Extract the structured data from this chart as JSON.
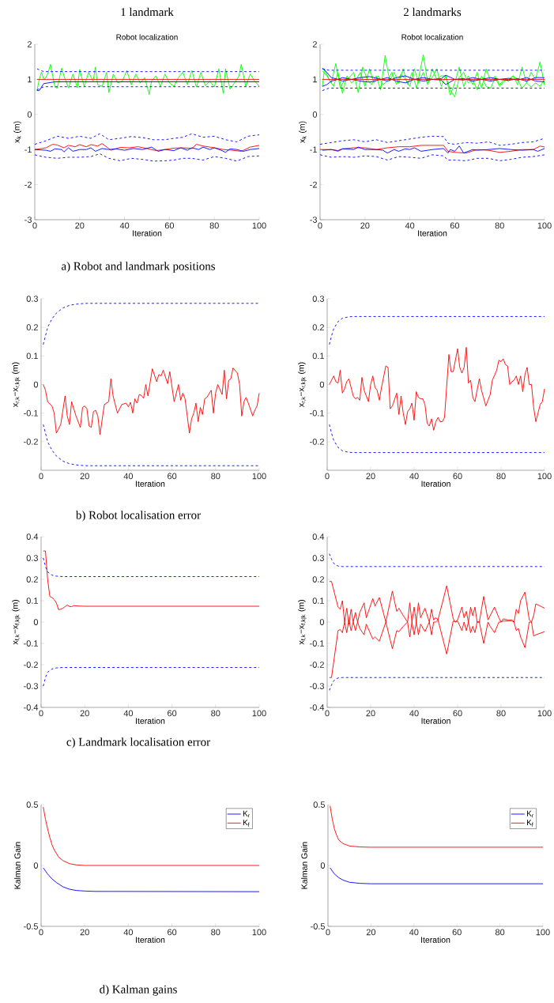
{
  "chart_data": [
    {
      "type": "line",
      "title": "Robot localization",
      "xlabel": "Iteration",
      "ylabel": "x$_{k}$ (m)",
      "xlim": [
        0,
        100
      ],
      "ylim": [
        -3,
        2
      ],
      "xticks": [
        0,
        20,
        40,
        60,
        80,
        100
      ],
      "yticks": [
        -3,
        -2,
        -1,
        0,
        1,
        2
      ],
      "annotations": [
        "1 landmark",
        "a) Robot and landmark positions"
      ],
      "series": [
        {
          "color": "#00ff00",
          "x": [
            1,
            2,
            3,
            4,
            5,
            6,
            7,
            8,
            9,
            10,
            12,
            13,
            15,
            17,
            19,
            20,
            22,
            24,
            26,
            27,
            28,
            30,
            32,
            33,
            35,
            37,
            39,
            41,
            43,
            45,
            47,
            49,
            51,
            52,
            54,
            56,
            58,
            60,
            62,
            64,
            66,
            68,
            70,
            72,
            74,
            76,
            78,
            80,
            82,
            84,
            85,
            87,
            89,
            91,
            92,
            94,
            96,
            98,
            100
          ],
          "values": [
            0.68,
            1.0,
            1.2,
            1.0,
            1.05,
            1.2,
            1.43,
            1.1,
            0.78,
            0.75,
            1.32,
            1.1,
            0.76,
            1.15,
            0.76,
            1.28,
            0.8,
            1.2,
            0.95,
            1.35,
            0.85,
            0.8,
            1.2,
            0.62,
            1.15,
            0.9,
            0.95,
            1.25,
            0.85,
            1.15,
            0.9,
            1.05,
            0.57,
            0.95,
            1.1,
            0.8,
            1.15,
            0.9,
            0.8,
            1.05,
            1.2,
            0.85,
            1.25,
            0.78,
            1.2,
            0.82,
            0.95,
            0.78,
            1.3,
            0.6,
            1.3,
            0.72,
            0.9,
            1.1,
            1.43,
            0.8,
            1.15,
            0.95,
            0.8
          ]
        },
        {
          "color": "#0000ff",
          "line_style": "dashed",
          "x": [
            1,
            4,
            100
          ],
          "values": [
            1.3,
            1.22,
            1.22
          ]
        },
        {
          "color": "#0000ff",
          "line_style": "dashed",
          "x": [
            1,
            4,
            100
          ],
          "values": [
            0.7,
            0.79,
            0.79
          ]
        },
        {
          "color": "#0000ff",
          "x": [
            1,
            2,
            4,
            9,
            100
          ],
          "values": [
            0.68,
            0.68,
            0.88,
            0.93,
            0.93
          ]
        },
        {
          "color": "#ff0000",
          "x": [
            1,
            100
          ],
          "values": [
            1,
            1
          ]
        },
        {
          "color": "#0000ff",
          "line_style": "dashed",
          "x": [
            0,
            5,
            10,
            15,
            20,
            25,
            29,
            33,
            38,
            43,
            48,
            53,
            58,
            62,
            66,
            70,
            75,
            80,
            85,
            90,
            95,
            100
          ],
          "values": [
            -0.85,
            -0.75,
            -0.62,
            -0.68,
            -0.62,
            -0.68,
            -0.55,
            -0.72,
            -0.68,
            -0.63,
            -0.66,
            -0.72,
            -0.72,
            -0.68,
            -0.65,
            -0.55,
            -0.65,
            -0.62,
            -0.72,
            -0.78,
            -0.62,
            -0.58
          ]
        },
        {
          "color": "#0000ff",
          "line_style": "dashed",
          "x": [
            0,
            5,
            10,
            15,
            20,
            25,
            29,
            33,
            38,
            43,
            48,
            53,
            58,
            62,
            66,
            70,
            75,
            80,
            85,
            90,
            95,
            100
          ],
          "values": [
            -1.15,
            -1.22,
            -1.25,
            -1.22,
            -1.22,
            -1.2,
            -1.12,
            -1.25,
            -1.32,
            -1.25,
            -1.28,
            -1.33,
            -1.32,
            -1.3,
            -1.25,
            -1.25,
            -1.3,
            -1.2,
            -1.25,
            -1.33,
            -1.2,
            -1.18
          ]
        },
        {
          "color": "#ff0000",
          "x": [
            0,
            5,
            8,
            10,
            13,
            15,
            18,
            20,
            23,
            25,
            28,
            30,
            34,
            38,
            42,
            46,
            50,
            54,
            58,
            62,
            66,
            70,
            72,
            75,
            78,
            80,
            84,
            88,
            92,
            96,
            100
          ],
          "values": [
            -1.0,
            -0.95,
            -0.85,
            -0.87,
            -0.95,
            -0.88,
            -0.92,
            -0.86,
            -0.92,
            -0.86,
            -0.9,
            -0.83,
            -1.02,
            -0.94,
            -0.95,
            -0.92,
            -0.97,
            -1.03,
            -1.0,
            -0.96,
            -0.95,
            -0.97,
            -0.85,
            -0.9,
            -0.93,
            -0.95,
            -1.0,
            -1.02,
            -1.05,
            -0.93,
            -0.88
          ]
        },
        {
          "color": "#0000ff",
          "x": [
            0,
            5,
            7,
            9,
            12,
            13,
            15,
            17,
            20,
            23,
            25,
            27,
            30,
            33,
            36,
            40,
            44,
            48,
            52,
            55,
            58,
            62,
            65,
            68,
            70,
            73,
            75,
            78,
            80,
            83,
            85,
            87,
            90,
            93,
            96,
            100
          ],
          "values": [
            -1.0,
            -1.02,
            -1.05,
            -0.98,
            -1.0,
            -1.07,
            -0.95,
            -1.05,
            -1.0,
            -1.0,
            -0.95,
            -1.05,
            -0.97,
            -1.0,
            -0.98,
            -1.02,
            -0.97,
            -1.0,
            -0.93,
            -1.05,
            -1.0,
            -1.03,
            -0.95,
            -1.02,
            -0.95,
            -1.0,
            -0.93,
            -1.0,
            -0.95,
            -1.02,
            -1.08,
            -0.98,
            -1.0,
            -1.05,
            -1.0,
            -0.97
          ]
        }
      ]
    },
    {
      "type": "line",
      "title": "Robot localization",
      "xlabel": "Iteration",
      "ylabel": "x$_{k}$ (m)",
      "xlim": [
        0,
        100
      ],
      "ylim": [
        -3,
        2
      ],
      "xticks": [
        0,
        20,
        40,
        60,
        80,
        100
      ],
      "yticks": [
        -3,
        -2,
        -1,
        0,
        1,
        2
      ],
      "annotations": [
        "2 landmarks"
      ],
      "series": [
        {
          "color": "#00ff00",
          "x": [
            1,
            3,
            5,
            7,
            9,
            11,
            13,
            15,
            17,
            19,
            21,
            23,
            25,
            27,
            29,
            31,
            33,
            35,
            37,
            39,
            41,
            43,
            46,
            48,
            50,
            52,
            54,
            56,
            58,
            60,
            62,
            64,
            66,
            68,
            70,
            72,
            74,
            76,
            78,
            80,
            82,
            84,
            86,
            88,
            90,
            92,
            94,
            96,
            98,
            100
          ],
          "values": [
            1.25,
            1.1,
            0.9,
            1.45,
            0.75,
            1.0,
            1.05,
            1.2,
            0.62,
            1.35,
            1.0,
            0.85,
            1.1,
            0.7,
            1.68,
            0.95,
            1.2,
            0.9,
            1.3,
            0.85,
            1.2,
            0.75,
            1.7,
            0.9,
            1.05,
            1.3,
            0.8,
            1.1,
            0.55,
            0.9,
            1.35,
            0.8,
            1.1,
            0.85,
            1.2,
            0.75,
            1.3,
            0.95,
            1.1,
            0.85,
            1.0,
            0.95,
            1.1,
            0.85,
            1.35,
            0.9,
            1.2,
            1.0,
            1.5,
            0.83
          ]
        },
        {
          "color": "#00ff00",
          "x": [
            1,
            2,
            4,
            6,
            8,
            10,
            12,
            14,
            16,
            18,
            20,
            22,
            24,
            26,
            28,
            30,
            32,
            34,
            36,
            38,
            40,
            42,
            44,
            46,
            48,
            50,
            52,
            54,
            56,
            58,
            60,
            62,
            64,
            66,
            68,
            70,
            72,
            74,
            76,
            78,
            80,
            82,
            84,
            86,
            88,
            90,
            92,
            94,
            96,
            98,
            100
          ],
          "values": [
            0.8,
            1.3,
            1.0,
            0.8,
            1.2,
            0.6,
            1.1,
            0.9,
            1.0,
            1.2,
            0.8,
            1.3,
            0.9,
            1.1,
            0.85,
            0.95,
            1.2,
            0.85,
            1.15,
            1.0,
            0.8,
            1.3,
            0.9,
            1.2,
            0.85,
            1.3,
            1.0,
            1.1,
            1.1,
            0.7,
            0.5,
            1.05,
            1.2,
            0.9,
            1.0,
            0.7,
            1.1,
            0.8,
            0.75,
            1.05,
            0.8,
            0.95,
            1.0,
            1.1,
            1.0,
            0.75,
            0.9,
            0.78,
            0.9,
            0.8,
            1.0
          ]
        },
        {
          "color": "#0000ff",
          "line_style": "dashed",
          "x": [
            1,
            4,
            100
          ],
          "values": [
            1.3,
            1.26,
            1.26
          ]
        },
        {
          "color": "#0000ff",
          "line_style": "dashed",
          "x": [
            1,
            4,
            100
          ],
          "values": [
            0.68,
            0.75,
            0.75
          ]
        },
        {
          "color": "#0000ff",
          "x": [
            1,
            3,
            5,
            8,
            10,
            14,
            18,
            22,
            26,
            30,
            34,
            38,
            42,
            46,
            50,
            54,
            56,
            60,
            64,
            68,
            72,
            76,
            80,
            84,
            88,
            92,
            96,
            100
          ],
          "values": [
            1.32,
            1.2,
            1.05,
            1.0,
            0.95,
            1.0,
            1.05,
            1.08,
            1.02,
            0.95,
            1.05,
            1.1,
            1.0,
            1.05,
            1.0,
            1.02,
            1.12,
            1.0,
            0.98,
            1.05,
            1.0,
            0.95,
            1.0,
            0.97,
            1.02,
            0.95,
            1.05,
            1.05
          ]
        },
        {
          "color": "#0000ff",
          "x": [
            1,
            3,
            5,
            8,
            10,
            14,
            18,
            22,
            26,
            30,
            34,
            38,
            42,
            46,
            50,
            54,
            56,
            60,
            64,
            68,
            72,
            76,
            80,
            84,
            88,
            92,
            96,
            100
          ],
          "values": [
            0.8,
            0.85,
            0.95,
            1.0,
            1.05,
            1.0,
            0.95,
            0.92,
            0.98,
            1.05,
            0.95,
            0.9,
            1.0,
            0.95,
            1.0,
            0.98,
            0.85,
            1.0,
            1.02,
            0.95,
            1.0,
            1.05,
            1.0,
            1.03,
            0.98,
            1.05,
            0.95,
            0.93
          ]
        },
        {
          "color": "#ff0000",
          "x": [
            1,
            100
          ],
          "values": [
            1,
            1
          ]
        },
        {
          "color": "#0000ff",
          "line_style": "dashed",
          "x": [
            0,
            5,
            10,
            15,
            20,
            25,
            30,
            35,
            40,
            45,
            50,
            55,
            57,
            60,
            65,
            70,
            75,
            80,
            85,
            90,
            95,
            100
          ],
          "values": [
            -0.85,
            -0.8,
            -0.75,
            -0.72,
            -0.78,
            -0.72,
            -0.8,
            -0.75,
            -0.7,
            -0.65,
            -0.62,
            -0.63,
            -0.82,
            -0.85,
            -0.8,
            -0.82,
            -0.78,
            -0.88,
            -0.85,
            -0.8,
            -0.78,
            -0.68
          ]
        },
        {
          "color": "#0000ff",
          "line_style": "dashed",
          "x": [
            0,
            5,
            10,
            15,
            20,
            25,
            30,
            35,
            40,
            45,
            50,
            55,
            57,
            60,
            65,
            70,
            75,
            80,
            85,
            90,
            95,
            100
          ],
          "values": [
            -1.15,
            -1.22,
            -1.2,
            -1.22,
            -1.18,
            -1.2,
            -1.3,
            -1.2,
            -1.22,
            -1.25,
            -1.15,
            -1.18,
            -1.3,
            -1.3,
            -1.32,
            -1.25,
            -1.25,
            -1.32,
            -1.28,
            -1.22,
            -1.2,
            -1.15
          ]
        },
        {
          "color": "#ff0000",
          "x": [
            0,
            5,
            8,
            10,
            15,
            20,
            25,
            30,
            35,
            40,
            45,
            50,
            55,
            57,
            60,
            65,
            70,
            75,
            80,
            85,
            90,
            95,
            98,
            100
          ],
          "values": [
            -1.0,
            -1.0,
            -1.05,
            -0.98,
            -0.95,
            -0.95,
            -1.0,
            -0.95,
            -0.92,
            -0.92,
            -0.88,
            -0.88,
            -0.88,
            -1.05,
            -1.08,
            -1.1,
            -1.0,
            -1.02,
            -1.08,
            -1.05,
            -1.0,
            -1.0,
            -0.9,
            -0.93
          ]
        },
        {
          "color": "#0000ff",
          "x": [
            1,
            5,
            8,
            10,
            15,
            17,
            20,
            25,
            28,
            30,
            33,
            35,
            38,
            40,
            42,
            45,
            50,
            55,
            57,
            58,
            60,
            62,
            64,
            66,
            68,
            70,
            75,
            80,
            85,
            90,
            95,
            97,
            100
          ],
          "values": [
            -1.02,
            -1.0,
            -1.03,
            -0.98,
            -1.0,
            -0.93,
            -1.0,
            -1.0,
            -1.02,
            -1.1,
            -1.0,
            -1.05,
            -0.98,
            -1.0,
            -0.95,
            -1.05,
            -1.0,
            -0.97,
            -1.1,
            -1.0,
            -1.05,
            -0.9,
            -1.1,
            -1.05,
            -1.0,
            -1.02,
            -1.0,
            -0.97,
            -1.0,
            -1.02,
            -1.0,
            -1.05,
            -0.97
          ]
        }
      ]
    },
    {
      "type": "line",
      "xlabel": "Iteration",
      "ylabel": "x$_{r,k}$−x$_{r,k|k}$ (m)",
      "xlim": [
        0,
        100
      ],
      "ylim": [
        -0.3,
        0.3
      ],
      "xticks": [
        0,
        20,
        40,
        60,
        80,
        100
      ],
      "yticks": [
        -0.2,
        -0.1,
        0,
        0.1,
        0.2,
        0.3
      ],
      "annotations": [
        "b) Robot localisation error"
      ],
      "series": [
        {
          "color": "#0000ff",
          "line_style": "dashed",
          "x": [
            1,
            2,
            3,
            5,
            7,
            10,
            13,
            16,
            20,
            100
          ],
          "values": [
            0.14,
            0.17,
            0.2,
            0.23,
            0.25,
            0.268,
            0.277,
            0.281,
            0.284,
            0.284
          ]
        },
        {
          "color": "#0000ff",
          "line_style": "dashed",
          "x": [
            1,
            2,
            3,
            5,
            7,
            10,
            13,
            16,
            20,
            100
          ],
          "values": [
            -0.14,
            -0.17,
            -0.2,
            -0.23,
            -0.25,
            -0.268,
            -0.277,
            -0.281,
            -0.284,
            -0.284
          ]
        },
        {
          "color": "#ff0000",
          "x": [
            1,
            2,
            3,
            5,
            6,
            7,
            9,
            11,
            12,
            13,
            14,
            16,
            18,
            19,
            20,
            21,
            22,
            23,
            24,
            25,
            26,
            27,
            29,
            31,
            32,
            33,
            35,
            37,
            39,
            40,
            41,
            42,
            43,
            44,
            45,
            46,
            47,
            48,
            49,
            51,
            53,
            54,
            55,
            56,
            58,
            59,
            61,
            63,
            64,
            65,
            66,
            68,
            69,
            70,
            71,
            72,
            73,
            74,
            75,
            76,
            78,
            79,
            80,
            81,
            83,
            84,
            85,
            86,
            87,
            88,
            90,
            91,
            92,
            93,
            94,
            95,
            97,
            98,
            99,
            100
          ],
          "values": [
            0.0,
            -0.02,
            -0.06,
            -0.075,
            -0.1,
            -0.17,
            -0.14,
            -0.04,
            -0.11,
            -0.14,
            -0.06,
            -0.11,
            -0.15,
            -0.08,
            -0.075,
            -0.085,
            -0.145,
            -0.15,
            -0.095,
            -0.09,
            -0.11,
            -0.175,
            -0.07,
            -0.06,
            0.02,
            -0.04,
            -0.1,
            -0.07,
            -0.065,
            -0.078,
            -0.062,
            -0.1,
            -0.05,
            -0.065,
            -0.035,
            -0.038,
            -0.048,
            0.0,
            -0.04,
            0.055,
            0.01,
            0.035,
            0.03,
            0.05,
            0.003,
            0.045,
            -0.06,
            0.0,
            -0.055,
            -0.03,
            -0.05,
            -0.17,
            -0.12,
            -0.1,
            -0.065,
            -0.13,
            -0.08,
            -0.105,
            -0.05,
            -0.045,
            -0.02,
            -0.1,
            -0.03,
            0.0,
            -0.035,
            0.05,
            -0.05,
            0.015,
            0.02,
            0.058,
            0.04,
            0.0,
            -0.11,
            -0.06,
            -0.045,
            -0.065,
            -0.11,
            -0.09,
            -0.075,
            -0.03
          ]
        }
      ]
    },
    {
      "type": "line",
      "xlabel": "Iteration",
      "ylabel": "x$_{r,k}$−x$_{r,k|k}$ (m)",
      "xlim": [
        0,
        100
      ],
      "ylim": [
        -0.3,
        0.3
      ],
      "xticks": [
        0,
        20,
        40,
        60,
        80,
        100
      ],
      "yticks": [
        -0.2,
        -0.1,
        0,
        0.1,
        0.2,
        0.3
      ],
      "series": [
        {
          "color": "#0000ff",
          "line_style": "dashed",
          "x": [
            1,
            2,
            3,
            5,
            7,
            10,
            12,
            100
          ],
          "values": [
            0.14,
            0.17,
            0.195,
            0.22,
            0.232,
            0.237,
            0.238,
            0.238
          ]
        },
        {
          "color": "#0000ff",
          "line_style": "dashed",
          "x": [
            1,
            2,
            3,
            5,
            7,
            10,
            12,
            100
          ],
          "values": [
            -0.14,
            -0.17,
            -0.195,
            -0.22,
            -0.232,
            -0.237,
            -0.238,
            -0.238
          ]
        },
        {
          "color": "#ff0000",
          "x": [
            1,
            3,
            4,
            5,
            6,
            7,
            8,
            9,
            10,
            11,
            12,
            13,
            14,
            15,
            16,
            17,
            19,
            20,
            21,
            22,
            23,
            24,
            25,
            27,
            28,
            29,
            30,
            32,
            33,
            34,
            35,
            36,
            37,
            38,
            39,
            40,
            41,
            42,
            43,
            44,
            45,
            46,
            47,
            48,
            49,
            50,
            51,
            52,
            53,
            54,
            56,
            57,
            58,
            60,
            61,
            62,
            63,
            64,
            65,
            66,
            67,
            68,
            70,
            71,
            73,
            74,
            75,
            76,
            78,
            79,
            80,
            81,
            82,
            83,
            84,
            85,
            86,
            87,
            88,
            89,
            90,
            91,
            92,
            93,
            94,
            95,
            96,
            97,
            98,
            99,
            100
          ],
          "values": [
            0.0,
            0.03,
            0.01,
            0.005,
            0.05,
            -0.03,
            -0.015,
            0.01,
            0.02,
            -0.01,
            -0.04,
            -0.05,
            -0.045,
            -0.055,
            0.025,
            -0.02,
            -0.06,
            0.0,
            0.03,
            -0.01,
            -0.02,
            -0.055,
            -0.01,
            0.065,
            0.06,
            -0.085,
            -0.075,
            -0.03,
            -0.105,
            -0.04,
            -0.1,
            -0.14,
            -0.095,
            -0.085,
            -0.065,
            -0.125,
            -0.025,
            -0.045,
            -0.05,
            -0.05,
            -0.07,
            -0.135,
            -0.145,
            -0.12,
            -0.16,
            -0.13,
            -0.115,
            -0.13,
            -0.13,
            -0.115,
            0.105,
            0.045,
            0.045,
            0.125,
            0.06,
            0.04,
            0.06,
            0.13,
            0.005,
            0.015,
            -0.045,
            -0.06,
            0.02,
            -0.02,
            -0.075,
            -0.055,
            -0.035,
            0.015,
            0.05,
            0.085,
            0.08,
            0.09,
            0.07,
            0.065,
            0.0,
            0.01,
            0.015,
            0.03,
            0.0,
            0.03,
            -0.025,
            0.035,
            0.06,
            0.0,
            0.0,
            -0.08,
            -0.13,
            -0.1,
            -0.07,
            -0.06,
            -0.015
          ]
        }
      ]
    },
    {
      "type": "line",
      "xlabel": "Iteration",
      "ylabel": "x$_{f,k}$−x$_{f,k|k}$ (m)",
      "xlim": [
        0,
        100
      ],
      "ylim": [
        -0.4,
        0.4
      ],
      "xticks": [
        0,
        20,
        40,
        60,
        80,
        100
      ],
      "yticks": [
        -0.4,
        -0.3,
        -0.2,
        -0.1,
        0,
        0.1,
        0.2,
        0.3,
        0.4
      ],
      "annotations": [
        "c) Landmark localisation error"
      ],
      "series": [
        {
          "color": "#0000ff",
          "line_style": "dashed",
          "x": [
            1,
            2,
            3,
            5,
            7,
            10,
            100
          ],
          "values": [
            0.3,
            0.26,
            0.235,
            0.22,
            0.215,
            0.213,
            0.213
          ]
        },
        {
          "color": "#0000ff",
          "line_style": "dashed",
          "x": [
            1,
            2,
            3,
            5,
            7,
            10,
            100
          ],
          "values": [
            -0.3,
            -0.26,
            -0.235,
            -0.22,
            -0.215,
            -0.213,
            -0.213
          ]
        },
        {
          "color": "#ff0000",
          "x": [
            1,
            2,
            3,
            4,
            5,
            6,
            7,
            8,
            9,
            10,
            11,
            12,
            13,
            14,
            15,
            17,
            20,
            100
          ],
          "values": [
            0.333,
            0.333,
            0.2,
            0.12,
            0.115,
            0.105,
            0.09,
            0.058,
            0.06,
            0.065,
            0.072,
            0.08,
            0.073,
            0.072,
            0.077,
            0.075,
            0.074,
            0.074
          ]
        }
      ]
    },
    {
      "type": "line",
      "xlabel": "Iteration",
      "ylabel": "x$_{f,k}$−x$_{f,k|k}$ (m)",
      "xlim": [
        0,
        100
      ],
      "ylim": [
        -0.4,
        0.4
      ],
      "xticks": [
        0,
        20,
        40,
        60,
        80,
        100
      ],
      "yticks": [
        -0.4,
        -0.3,
        -0.2,
        -0.1,
        0,
        0.1,
        0.2,
        0.3,
        0.4
      ],
      "series": [
        {
          "color": "#0000ff",
          "line_style": "dashed",
          "x": [
            1,
            2,
            3,
            5,
            7,
            100
          ],
          "values": [
            0.32,
            0.295,
            0.275,
            0.262,
            0.26,
            0.26
          ]
        },
        {
          "color": "#0000ff",
          "line_style": "dashed",
          "x": [
            1,
            2,
            3,
            5,
            7,
            100
          ],
          "values": [
            -0.32,
            -0.295,
            -0.275,
            -0.262,
            -0.26,
            -0.26
          ]
        },
        {
          "color": "#ff0000",
          "x": [
            1,
            2,
            5,
            6,
            7,
            8,
            9,
            10,
            11,
            12,
            13,
            14,
            15,
            17,
            18,
            21,
            22,
            24,
            27,
            30,
            32,
            33,
            35,
            37,
            38,
            39,
            40,
            41,
            42,
            43,
            45,
            47,
            48,
            49,
            50,
            51,
            55,
            58,
            59,
            60,
            62,
            63,
            64,
            65,
            66,
            67,
            68,
            69,
            70,
            72,
            74,
            75,
            77,
            79,
            80,
            81,
            83,
            85,
            86,
            87,
            88,
            89,
            91,
            93,
            94,
            95,
            96,
            100
          ],
          "values": [
            0.19,
            0.19,
            0.07,
            0.06,
            0.1,
            0.0,
            0.065,
            -0.01,
            0.06,
            0.0,
            0.045,
            0.0,
            0.045,
            0.09,
            0.02,
            0.11,
            0.075,
            0.115,
            0.0,
            0.145,
            0.05,
            0.065,
            0.03,
            0.0,
            0.09,
            0.0,
            0.07,
            0.0,
            0.09,
            0.02,
            0.065,
            0.0,
            0.06,
            0.01,
            0.02,
            0.01,
            0.17,
            0.015,
            0.0,
            0.01,
            0.07,
            0.02,
            0.05,
            0.0,
            0.07,
            0.03,
            0.07,
            0.0,
            0.0,
            0.12,
            0.01,
            0.03,
            0.07,
            0.02,
            0.0,
            0.015,
            0.01,
            0.01,
            0.0,
            0.06,
            0.04,
            0.1,
            0.14,
            0.01,
            0.0,
            0.03,
            0.085,
            0.065
          ]
        },
        {
          "color": "#ff0000",
          "x": [
            1,
            2,
            5,
            6,
            7,
            8,
            9,
            10,
            11,
            12,
            13,
            14,
            15,
            17,
            18,
            21,
            22,
            24,
            27,
            30,
            32,
            33,
            35,
            37,
            38,
            39,
            40,
            41,
            42,
            43,
            45,
            47,
            48,
            49,
            50,
            51,
            55,
            58,
            59,
            60,
            62,
            63,
            64,
            65,
            66,
            67,
            68,
            69,
            70,
            72,
            74,
            75,
            77,
            79,
            80,
            81,
            83,
            85,
            86,
            87,
            88,
            89,
            91,
            93,
            94,
            95,
            96,
            100
          ],
          "values": [
            -0.26,
            -0.26,
            -0.04,
            -0.035,
            -0.05,
            0.0,
            -0.05,
            0.01,
            -0.04,
            0.0,
            -0.04,
            0.0,
            -0.03,
            -0.06,
            -0.01,
            -0.08,
            -0.07,
            -0.09,
            0.0,
            -0.125,
            -0.04,
            -0.045,
            -0.02,
            0.0,
            -0.07,
            0.0,
            -0.06,
            0.0,
            -0.06,
            -0.01,
            -0.045,
            0.0,
            -0.06,
            0.0,
            0.0,
            0.01,
            -0.15,
            0.005,
            0.0,
            0.005,
            -0.04,
            0.0,
            -0.04,
            0.0,
            -0.05,
            -0.02,
            -0.05,
            0.0,
            0.0,
            -0.1,
            0.0,
            -0.02,
            -0.05,
            0.0,
            0.0,
            0.005,
            0.005,
            0.005,
            0.0,
            -0.04,
            -0.03,
            -0.07,
            -0.12,
            0.0,
            0.0,
            -0.065,
            -0.06,
            -0.045
          ]
        }
      ]
    },
    {
      "type": "line",
      "xlabel": "Iteration",
      "ylabel": "Kalman Gain",
      "xlim": [
        0,
        100
      ],
      "ylim": [
        -0.5,
        0.5
      ],
      "xticks": [
        0,
        20,
        40,
        60,
        80,
        100
      ],
      "yticks": [
        -0.5,
        0,
        0.5
      ],
      "legend": "top right",
      "annotations": [
        "d) Kalman gains"
      ],
      "series": [
        {
          "name": "K$_{r}$",
          "color": "#0000ff",
          "x": [
            1,
            3,
            5,
            7,
            10,
            13,
            16,
            20,
            25,
            100
          ],
          "values": [
            -0.02,
            -0.07,
            -0.11,
            -0.14,
            -0.175,
            -0.195,
            -0.205,
            -0.21,
            -0.213,
            -0.215
          ]
        },
        {
          "name": "K$_{f}$",
          "color": "#ff0000",
          "x": [
            1,
            2,
            3,
            4,
            5,
            6,
            8,
            10,
            13,
            16,
            20,
            100
          ],
          "values": [
            0.48,
            0.38,
            0.3,
            0.23,
            0.17,
            0.13,
            0.07,
            0.04,
            0.015,
            0.005,
            0.0,
            0.0
          ]
        }
      ]
    },
    {
      "type": "line",
      "xlabel": "Iteration",
      "ylabel": "Kalman Gain",
      "xlim": [
        0,
        100
      ],
      "ylim": [
        -0.5,
        0.5
      ],
      "xticks": [
        0,
        20,
        40,
        60,
        80,
        100
      ],
      "yticks": [
        -0.5,
        0,
        0.5
      ],
      "legend": "top right",
      "series": [
        {
          "name": "K$_{r}$",
          "color": "#0000ff",
          "x": [
            1,
            3,
            5,
            7,
            10,
            15,
            20,
            100
          ],
          "values": [
            -0.02,
            -0.07,
            -0.1,
            -0.12,
            -0.138,
            -0.147,
            -0.15,
            -0.15
          ]
        },
        {
          "name": "K$_{f}$",
          "color": "#ff0000",
          "x": [
            1,
            2,
            3,
            4,
            5,
            7,
            10,
            15,
            20,
            100
          ],
          "values": [
            0.49,
            0.38,
            0.3,
            0.25,
            0.21,
            0.18,
            0.16,
            0.152,
            0.15,
            0.15
          ]
        }
      ]
    }
  ]
}
